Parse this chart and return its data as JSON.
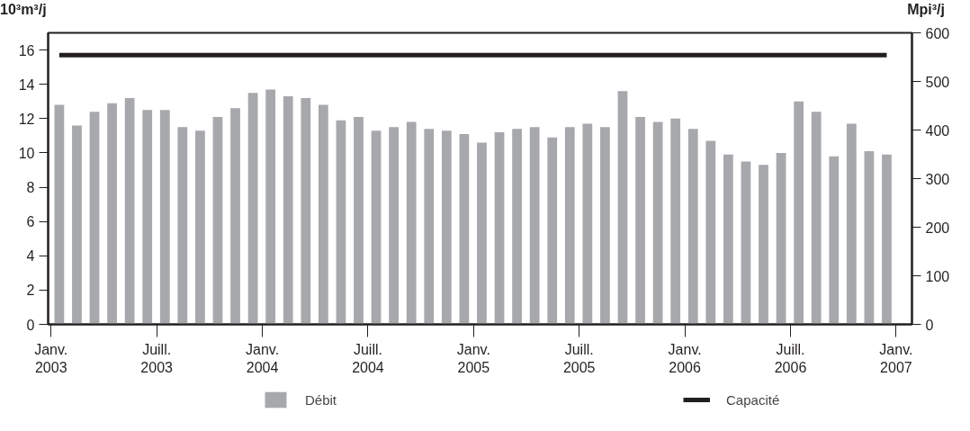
{
  "chart_data": {
    "type": "bar",
    "ylabel": "10³m³/j",
    "y2label": "Mpi³/j",
    "x": [
      "2003-01-15",
      "2003-02-15",
      "2003-03-15",
      "2003-04-15",
      "2003-05-15",
      "2003-06-15",
      "2003-07-15",
      "2003-08-15",
      "2003-09-15",
      "2003-10-15",
      "2003-11-15",
      "2003-12-15",
      "2004-01-15",
      "2004-02-15",
      "2004-03-15",
      "2004-04-15",
      "2004-05-15",
      "2004-06-15",
      "2004-07-15",
      "2004-08-15",
      "2004-09-15",
      "2004-10-15",
      "2004-11-15",
      "2004-12-15",
      "2005-01-15",
      "2005-02-15",
      "2005-03-15",
      "2005-04-15",
      "2005-05-15",
      "2005-06-15",
      "2005-07-15",
      "2005-08-15",
      "2005-09-15",
      "2005-10-15",
      "2005-11-15",
      "2005-12-15",
      "2006-01-15",
      "2006-02-15",
      "2006-03-15",
      "2006-04-15",
      "2006-05-15",
      "2006-06-15",
      "2006-07-15",
      "2006-08-15",
      "2006-09-15",
      "2006-10-15",
      "2006-11-15",
      "2006-12-15"
    ],
    "series": [
      {
        "name": "Débit",
        "color": "#a7a8ab",
        "values": [
          12.8,
          11.6,
          12.4,
          12.9,
          13.2,
          12.5,
          12.5,
          11.5,
          11.3,
          12.1,
          12.6,
          13.5,
          13.7,
          13.3,
          13.2,
          12.8,
          11.9,
          12.1,
          11.3,
          11.5,
          11.8,
          11.4,
          11.3,
          11.1,
          10.6,
          11.2,
          11.4,
          11.5,
          10.9,
          11.5,
          11.7,
          11.5,
          13.6,
          12.1,
          11.8,
          12.0,
          11.4,
          10.7,
          9.9,
          9.5,
          9.3,
          10.0,
          13.0,
          12.4,
          9.8,
          11.7,
          10.1,
          9.9
        ]
      },
      {
        "name": "Capacité",
        "type": "line",
        "color": "#231f20",
        "values": [
          15.7,
          15.7,
          15.7,
          15.7,
          15.7,
          15.7,
          15.7,
          15.7,
          15.7,
          15.7,
          15.7,
          15.7,
          15.7,
          15.7,
          15.7,
          15.7,
          15.7,
          15.7,
          15.7,
          15.7,
          15.7,
          15.7,
          15.7,
          15.7,
          15.7,
          15.7,
          15.7,
          15.7,
          15.7,
          15.7,
          15.7,
          15.7,
          15.7,
          15.7,
          15.7,
          15.7,
          15.7,
          15.7,
          15.7,
          15.7,
          15.7,
          15.7,
          15.7,
          15.7,
          15.7,
          15.7,
          15.7,
          15.7
        ]
      }
    ],
    "xlim": [
      "2002-12-26",
      "2007-01-28"
    ],
    "xticks": [
      {
        "value": "2003-01-01",
        "label": "Janv.\n2003"
      },
      {
        "value": "2003-07-01",
        "label": "Juill.\n2003"
      },
      {
        "value": "2004-01-01",
        "label": "Janv.\n2004"
      },
      {
        "value": "2004-07-01",
        "label": "Juill.\n2004"
      },
      {
        "value": "2005-01-01",
        "label": "Janv.\n2005"
      },
      {
        "value": "2005-07-01",
        "label": "Juill.\n2005"
      },
      {
        "value": "2006-01-01",
        "label": "Janv.\n2006"
      },
      {
        "value": "2006-07-01",
        "label": "Juill.\n2006"
      },
      {
        "value": "2007-01-01",
        "label": "Janv.\n2007"
      }
    ],
    "ylim": [
      0,
      17
    ],
    "yticks": [
      0,
      2,
      4,
      6,
      8,
      10,
      12,
      14,
      16
    ],
    "y2lim": [
      0,
      600
    ],
    "y2ticks": [
      0,
      100,
      200,
      300,
      400,
      500,
      600
    ],
    "grid": false,
    "legend": "bottom"
  }
}
